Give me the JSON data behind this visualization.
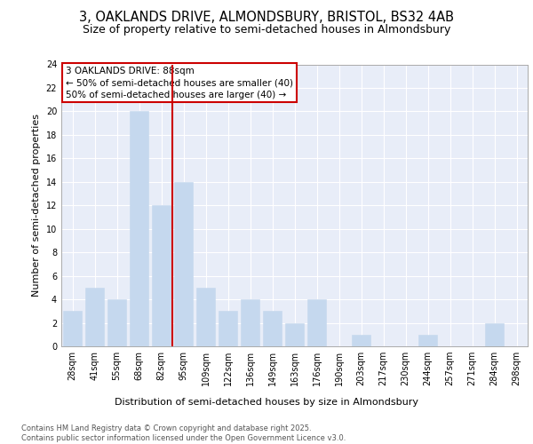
{
  "title1": "3, OAKLANDS DRIVE, ALMONDSBURY, BRISTOL, BS32 4AB",
  "title2": "Size of property relative to semi-detached houses in Almondsbury",
  "xlabel": "Distribution of semi-detached houses by size in Almondsbury",
  "ylabel": "Number of semi-detached properties",
  "categories": [
    "28sqm",
    "41sqm",
    "55sqm",
    "68sqm",
    "82sqm",
    "95sqm",
    "109sqm",
    "122sqm",
    "136sqm",
    "149sqm",
    "163sqm",
    "176sqm",
    "190sqm",
    "203sqm",
    "217sqm",
    "230sqm",
    "244sqm",
    "257sqm",
    "271sqm",
    "284sqm",
    "298sqm"
  ],
  "values": [
    3,
    5,
    4,
    20,
    12,
    14,
    5,
    3,
    4,
    3,
    2,
    4,
    0,
    1,
    0,
    0,
    1,
    0,
    0,
    2,
    0
  ],
  "bar_color": "#c5d8ee",
  "bar_edgecolor": "#c5d8ee",
  "vline_x": 4.5,
  "vline_color": "#cc0000",
  "annotation_text": "3 OAKLANDS DRIVE: 88sqm\n← 50% of semi-detached houses are smaller (40)\n50% of semi-detached houses are larger (40) →",
  "annotation_box_edgecolor": "#cc0000",
  "ylim": [
    0,
    24
  ],
  "yticks": [
    0,
    2,
    4,
    6,
    8,
    10,
    12,
    14,
    16,
    18,
    20,
    22,
    24
  ],
  "background_color": "#e8edf8",
  "grid_color": "#ffffff",
  "footer_text": "Contains HM Land Registry data © Crown copyright and database right 2025.\nContains public sector information licensed under the Open Government Licence v3.0.",
  "title1_fontsize": 10.5,
  "title2_fontsize": 9,
  "axis_label_fontsize": 8,
  "tick_fontsize": 7,
  "annotation_fontsize": 7.5,
  "footer_fontsize": 6
}
